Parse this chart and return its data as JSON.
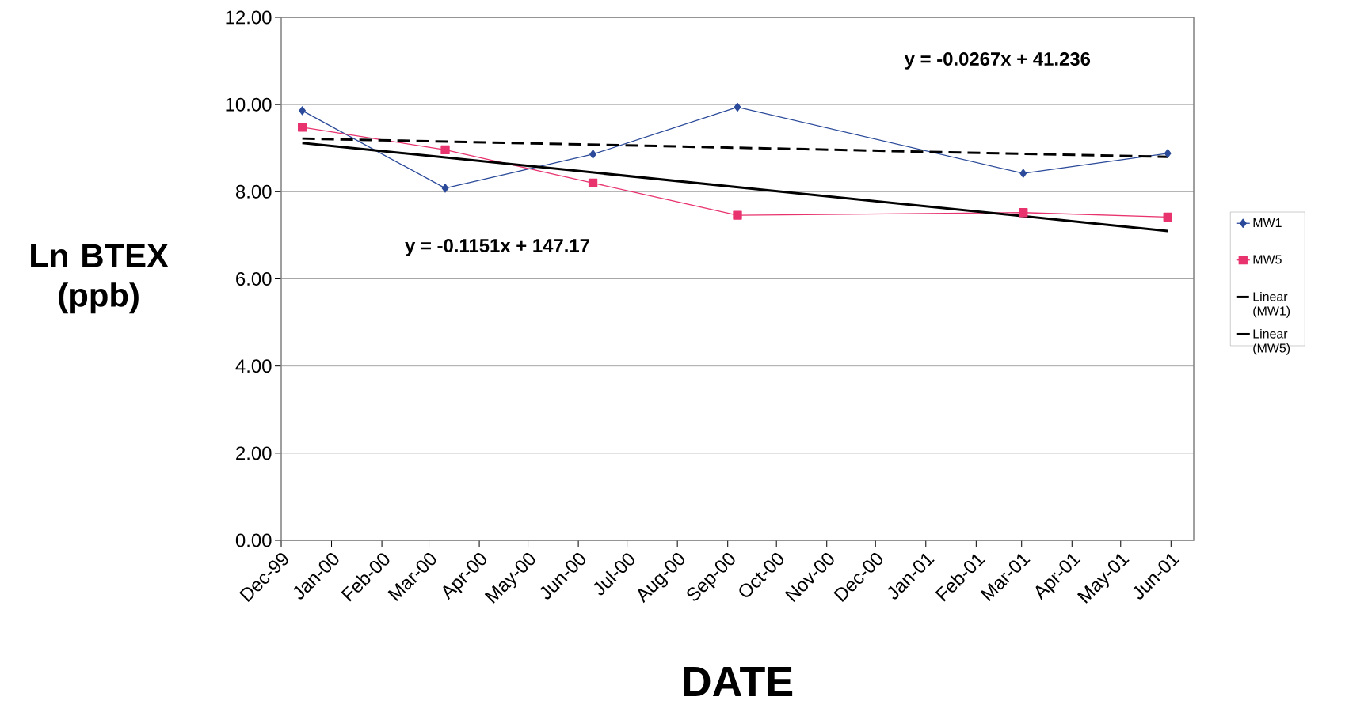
{
  "chart_data": {
    "type": "line",
    "xlabel": "DATE",
    "ylabel": "Ln BTEX (ppb)",
    "x": [
      "1999-12-14",
      "2000-03-11",
      "2000-06-10",
      "2000-09-07",
      "2001-03-02",
      "2001-05-30"
    ],
    "series": [
      {
        "name": "MW1",
        "color": "#2b4a9a",
        "marker": "diamond",
        "values": [
          9.86,
          8.08,
          8.86,
          9.94,
          8.42,
          8.88
        ]
      },
      {
        "name": "MW5",
        "color": "#e8336e",
        "marker": "square",
        "values": [
          9.48,
          8.96,
          8.2,
          7.46,
          7.52,
          7.42
        ]
      },
      {
        "name": "Linear (MW1)",
        "color": "#000000",
        "marker": "none",
        "line_style": "dashed",
        "x": [
          "1999-12-14",
          "2001-05-30"
        ],
        "values": [
          9.22,
          8.8
        ]
      },
      {
        "name": "Linear (MW5)",
        "color": "#000000",
        "marker": "none",
        "line_style": "solid",
        "x": [
          "1999-12-14",
          "2001-05-30"
        ],
        "values": [
          9.12,
          7.1
        ]
      }
    ],
    "annotations": [
      "y = -0.0267x + 41.236",
      "y = -0.1151x + 147.17"
    ],
    "xlim": [
      "1999-12-01",
      "2001-06-15"
    ],
    "xticks": [
      {
        "value": "1999-12-01",
        "label": "Dec-99"
      },
      {
        "value": "2000-01-01",
        "label": "Jan-00"
      },
      {
        "value": "2000-02-01",
        "label": "Feb-00"
      },
      {
        "value": "2000-03-01",
        "label": "Mar-00"
      },
      {
        "value": "2000-04-01",
        "label": "Apr-00"
      },
      {
        "value": "2000-05-01",
        "label": "May-00"
      },
      {
        "value": "2000-06-01",
        "label": "Jun-00"
      },
      {
        "value": "2000-07-01",
        "label": "Jul-00"
      },
      {
        "value": "2000-08-01",
        "label": "Aug-00"
      },
      {
        "value": "2000-09-01",
        "label": "Sep-00"
      },
      {
        "value": "2000-10-01",
        "label": "Oct-00"
      },
      {
        "value": "2000-11-01",
        "label": "Nov-00"
      },
      {
        "value": "2000-12-01",
        "label": "Dec-00"
      },
      {
        "value": "2001-01-01",
        "label": "Jan-01"
      },
      {
        "value": "2001-02-01",
        "label": "Feb-01"
      },
      {
        "value": "2001-03-01",
        "label": "Mar-01"
      },
      {
        "value": "2001-04-01",
        "label": "Apr-01"
      },
      {
        "value": "2001-05-01",
        "label": "May-01"
      },
      {
        "value": "2001-06-01",
        "label": "Jun-01"
      }
    ],
    "ylim": [
      0,
      12
    ],
    "yticks": [
      {
        "value": 0,
        "label": "0.00"
      },
      {
        "value": 2,
        "label": "2.00"
      },
      {
        "value": 4,
        "label": "4.00"
      },
      {
        "value": 6,
        "label": "6.00"
      },
      {
        "value": 8,
        "label": "8.00"
      },
      {
        "value": 10,
        "label": "10.00"
      },
      {
        "value": 12,
        "label": "12.00"
      }
    ],
    "grid": "y",
    "legend": "right"
  }
}
